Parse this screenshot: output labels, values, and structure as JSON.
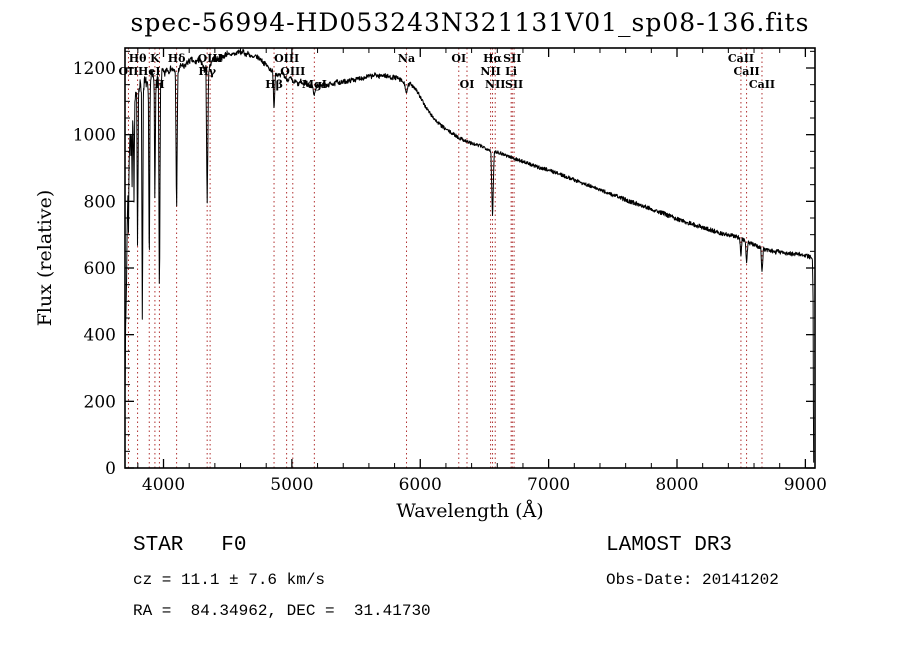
{
  "title": "spec-56994-HD053243N321131V01_sp08-136.fits",
  "annotations": {
    "star_class": "STAR   F0",
    "survey": "LAMOST DR3",
    "cz": "cz = 11.1 ± 7.6 km/s",
    "obs_date": "Obs-Date: 20141202",
    "coords": "RA =  84.34962, DEC =  31.41730"
  },
  "chart_data": {
    "type": "line",
    "title": "spec-56994-HD053243N321131V01_sp08-136.fits",
    "xlabel": "Wavelength (Å)",
    "ylabel": "Flux (relative)",
    "xlim": [
      3700,
      9075
    ],
    "ylim": [
      0,
      1260
    ],
    "x_ticks": [
      4000,
      5000,
      6000,
      7000,
      8000,
      9000
    ],
    "y_ticks": [
      0,
      200,
      400,
      600,
      800,
      1000,
      1200
    ],
    "x_minor_step": 200,
    "y_minor_step": 50,
    "grid": false,
    "trace_color": "#000000",
    "spectral_line_color": "#b03030",
    "spectral_lines": [
      {
        "label": "OII",
        "wavelength": 3727,
        "row": 2
      },
      {
        "label": "Hθ",
        "wavelength": 3798,
        "row": 1
      },
      {
        "label": "HeI",
        "wavelength": 3889,
        "row": 2
      },
      {
        "label": "K",
        "wavelength": 3933,
        "row": 1
      },
      {
        "label": "H",
        "wavelength": 3968,
        "row": 3
      },
      {
        "label": "Hδ",
        "wavelength": 4102,
        "row": 1
      },
      {
        "label": "Hγ",
        "wavelength": 4340,
        "row": 2
      },
      {
        "label": "OIII",
        "wavelength": 4363,
        "row": 1
      },
      {
        "label": "Hβ",
        "wavelength": 4861,
        "row": 3
      },
      {
        "label": "OIII",
        "wavelength": 4959,
        "row": 1
      },
      {
        "label": "OIII",
        "wavelength": 5007,
        "row": 2
      },
      {
        "label": "MgI",
        "wavelength": 5175,
        "row": 3
      },
      {
        "label": "Na",
        "wavelength": 5893,
        "row": 1
      },
      {
        "label": "OI",
        "wavelength": 6300,
        "row": 1
      },
      {
        "label": "OI",
        "wavelength": 6364,
        "row": 3
      },
      {
        "label": "NII",
        "wavelength": 6548,
        "row": 2
      },
      {
        "label": "Hα",
        "wavelength": 6563,
        "row": 1
      },
      {
        "label": "NII",
        "wavelength": 6584,
        "row": 3
      },
      {
        "label": "Li",
        "wavelength": 6708,
        "row": 2
      },
      {
        "label": "SII",
        "wavelength": 6717,
        "row": 1
      },
      {
        "label": "SII",
        "wavelength": 6731,
        "row": 3
      },
      {
        "label": "CaII",
        "wavelength": 8498,
        "row": 1
      },
      {
        "label": "CaII",
        "wavelength": 8542,
        "row": 2
      },
      {
        "label": "CaII",
        "wavelength": 8662,
        "row": 3
      }
    ],
    "series": [
      {
        "name": "spectrum",
        "points": [
          [
            3700,
            250
          ],
          [
            3706,
            430
          ],
          [
            3712,
            560
          ],
          [
            3718,
            760
          ],
          [
            3724,
            820
          ],
          [
            3727,
            700
          ],
          [
            3731,
            900
          ],
          [
            3736,
            980
          ],
          [
            3741,
            1020
          ],
          [
            3746,
            930
          ],
          [
            3750,
            1010
          ],
          [
            3755,
            860
          ],
          [
            3760,
            1060
          ],
          [
            3764,
            1020
          ],
          [
            3770,
            820
          ],
          [
            3777,
            1090
          ],
          [
            3783,
            1110
          ],
          [
            3791,
            1110
          ],
          [
            3798,
            640
          ],
          [
            3805,
            1120
          ],
          [
            3812,
            1140
          ],
          [
            3820,
            1150
          ],
          [
            3828,
            1130
          ],
          [
            3835,
            430
          ],
          [
            3843,
            1140
          ],
          [
            3850,
            1160
          ],
          [
            3858,
            1150
          ],
          [
            3866,
            1160
          ],
          [
            3874,
            1140
          ],
          [
            3882,
            1120
          ],
          [
            3889,
            560
          ],
          [
            3896,
            1140
          ],
          [
            3904,
            1170
          ],
          [
            3912,
            1180
          ],
          [
            3920,
            1170
          ],
          [
            3927,
            1160
          ],
          [
            3933,
            800
          ],
          [
            3941,
            1160
          ],
          [
            3950,
            1160
          ],
          [
            3960,
            1150
          ],
          [
            3968,
            500
          ],
          [
            3977,
            1150
          ],
          [
            3986,
            1180
          ],
          [
            3995,
            1190
          ],
          [
            4010,
            1180
          ],
          [
            4025,
            1200
          ],
          [
            4040,
            1190
          ],
          [
            4060,
            1200
          ],
          [
            4080,
            1190
          ],
          [
            4092,
            1190
          ],
          [
            4102,
            770
          ],
          [
            4112,
            1185
          ],
          [
            4125,
            1200
          ],
          [
            4140,
            1210
          ],
          [
            4160,
            1200
          ],
          [
            4180,
            1215
          ],
          [
            4200,
            1220
          ],
          [
            4220,
            1225
          ],
          [
            4240,
            1215
          ],
          [
            4260,
            1220
          ],
          [
            4280,
            1225
          ],
          [
            4300,
            1210
          ],
          [
            4315,
            1195
          ],
          [
            4330,
            1200
          ],
          [
            4340,
            790
          ],
          [
            4352,
            1195
          ],
          [
            4365,
            1210
          ],
          [
            4380,
            1225
          ],
          [
            4400,
            1230
          ],
          [
            4420,
            1225
          ],
          [
            4440,
            1235
          ],
          [
            4460,
            1230
          ],
          [
            4480,
            1240
          ],
          [
            4500,
            1245
          ],
          [
            4520,
            1235
          ],
          [
            4540,
            1245
          ],
          [
            4560,
            1240
          ],
          [
            4580,
            1250
          ],
          [
            4600,
            1245
          ],
          [
            4620,
            1250
          ],
          [
            4640,
            1240
          ],
          [
            4660,
            1245
          ],
          [
            4680,
            1235
          ],
          [
            4700,
            1230
          ],
          [
            4720,
            1235
          ],
          [
            4740,
            1230
          ],
          [
            4760,
            1225
          ],
          [
            4780,
            1215
          ],
          [
            4800,
            1210
          ],
          [
            4820,
            1200
          ],
          [
            4835,
            1195
          ],
          [
            4850,
            1190
          ],
          [
            4861,
            1075
          ],
          [
            4872,
            1185
          ],
          [
            4890,
            1180
          ],
          [
            4910,
            1175
          ],
          [
            4930,
            1185
          ],
          [
            4950,
            1170
          ],
          [
            4970,
            1165
          ],
          [
            4990,
            1170
          ],
          [
            5010,
            1155
          ],
          [
            5030,
            1160
          ],
          [
            5050,
            1150
          ],
          [
            5070,
            1160
          ],
          [
            5090,
            1150
          ],
          [
            5110,
            1160
          ],
          [
            5130,
            1150
          ],
          [
            5145,
            1145
          ],
          [
            5160,
            1150
          ],
          [
            5175,
            1115
          ],
          [
            5190,
            1145
          ],
          [
            5210,
            1150
          ],
          [
            5230,
            1145
          ],
          [
            5250,
            1155
          ],
          [
            5270,
            1145
          ],
          [
            5290,
            1150
          ],
          [
            5310,
            1155
          ],
          [
            5330,
            1150
          ],
          [
            5350,
            1160
          ],
          [
            5380,
            1155
          ],
          [
            5410,
            1160
          ],
          [
            5440,
            1160
          ],
          [
            5470,
            1165
          ],
          [
            5500,
            1165
          ],
          [
            5530,
            1170
          ],
          [
            5560,
            1170
          ],
          [
            5590,
            1175
          ],
          [
            5620,
            1175
          ],
          [
            5650,
            1180
          ],
          [
            5680,
            1175
          ],
          [
            5710,
            1180
          ],
          [
            5740,
            1175
          ],
          [
            5770,
            1172
          ],
          [
            5800,
            1172
          ],
          [
            5830,
            1168
          ],
          [
            5860,
            1160
          ],
          [
            5880,
            1150
          ],
          [
            5893,
            1118
          ],
          [
            5906,
            1148
          ],
          [
            5920,
            1152
          ],
          [
            5940,
            1148
          ],
          [
            5960,
            1140
          ],
          [
            5980,
            1128
          ],
          [
            6000,
            1112
          ],
          [
            6020,
            1098
          ],
          [
            6040,
            1085
          ],
          [
            6060,
            1073
          ],
          [
            6080,
            1062
          ],
          [
            6100,
            1052
          ],
          [
            6120,
            1043
          ],
          [
            6140,
            1035
          ],
          [
            6160,
            1028
          ],
          [
            6180,
            1022
          ],
          [
            6200,
            1016
          ],
          [
            6220,
            1011
          ],
          [
            6240,
            1006
          ],
          [
            6260,
            1001
          ],
          [
            6280,
            997
          ],
          [
            6300,
            990
          ],
          [
            6320,
            988
          ],
          [
            6340,
            984
          ],
          [
            6360,
            980
          ],
          [
            6380,
            977
          ],
          [
            6400,
            974
          ],
          [
            6420,
            971
          ],
          [
            6440,
            969
          ],
          [
            6460,
            967
          ],
          [
            6480,
            965
          ],
          [
            6500,
            962
          ],
          [
            6520,
            958
          ],
          [
            6540,
            954
          ],
          [
            6550,
            950
          ],
          [
            6563,
            745
          ],
          [
            6576,
            948
          ],
          [
            6590,
            950
          ],
          [
            6630,
            944
          ],
          [
            6670,
            938
          ],
          [
            6710,
            932
          ],
          [
            6750,
            926
          ],
          [
            6790,
            921
          ],
          [
            6830,
            915
          ],
          [
            6870,
            909
          ],
          [
            6910,
            903
          ],
          [
            6950,
            899
          ],
          [
            6990,
            896
          ],
          [
            7030,
            890
          ],
          [
            7070,
            884
          ],
          [
            7110,
            878
          ],
          [
            7150,
            872
          ],
          [
            7190,
            866
          ],
          [
            7230,
            860
          ],
          [
            7270,
            854
          ],
          [
            7310,
            848
          ],
          [
            7350,
            842
          ],
          [
            7390,
            836
          ],
          [
            7430,
            830
          ],
          [
            7470,
            824
          ],
          [
            7510,
            818
          ],
          [
            7550,
            812
          ],
          [
            7590,
            806
          ],
          [
            7630,
            800
          ],
          [
            7670,
            795
          ],
          [
            7710,
            790
          ],
          [
            7750,
            785
          ],
          [
            7790,
            779
          ],
          [
            7830,
            773
          ],
          [
            7870,
            767
          ],
          [
            7910,
            761
          ],
          [
            7950,
            755
          ],
          [
            7990,
            749
          ],
          [
            8030,
            743
          ],
          [
            8070,
            738
          ],
          [
            8110,
            733
          ],
          [
            8150,
            728
          ],
          [
            8190,
            723
          ],
          [
            8230,
            718
          ],
          [
            8270,
            713
          ],
          [
            8310,
            708
          ],
          [
            8350,
            704
          ],
          [
            8400,
            700
          ],
          [
            8450,
            695
          ],
          [
            8488,
            690
          ],
          [
            8498,
            638
          ],
          [
            8508,
            688
          ],
          [
            8520,
            684
          ],
          [
            8532,
            682
          ],
          [
            8542,
            612
          ],
          [
            8554,
            678
          ],
          [
            8570,
            675
          ],
          [
            8590,
            670
          ],
          [
            8610,
            668
          ],
          [
            8630,
            665
          ],
          [
            8652,
            662
          ],
          [
            8662,
            585
          ],
          [
            8674,
            658
          ],
          [
            8690,
            655
          ],
          [
            8710,
            652
          ],
          [
            8730,
            650
          ],
          [
            8750,
            652
          ],
          [
            8770,
            648
          ],
          [
            8790,
            650
          ],
          [
            8810,
            646
          ],
          [
            8830,
            648
          ],
          [
            8850,
            643
          ],
          [
            8870,
            646
          ],
          [
            8890,
            641
          ],
          [
            8910,
            644
          ],
          [
            8930,
            640
          ],
          [
            8950,
            642
          ],
          [
            8970,
            638
          ],
          [
            8990,
            640
          ],
          [
            9010,
            636
          ],
          [
            9030,
            634
          ],
          [
            9045,
            630
          ],
          [
            9055,
            625
          ],
          [
            9060,
            500
          ],
          [
            9063,
            120
          ],
          [
            9065,
            15
          ]
        ]
      }
    ]
  }
}
